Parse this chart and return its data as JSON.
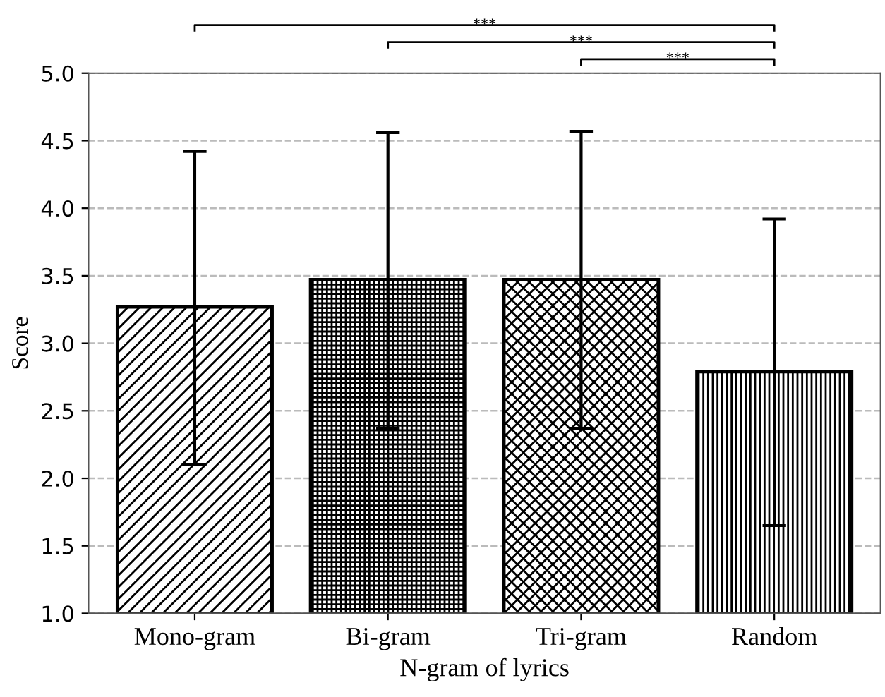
{
  "chart_data": {
    "type": "bar",
    "xlabel": "N-gram of lyrics",
    "ylabel": "Score",
    "categories": [
      "Mono-gram",
      "Bi-gram",
      "Tri-gram",
      "Random"
    ],
    "values": [
      3.27,
      3.47,
      3.47,
      2.79
    ],
    "errors": [
      [
        2.1,
        4.42
      ],
      [
        2.37,
        4.56
      ],
      [
        2.37,
        4.57
      ],
      [
        1.65,
        3.92
      ]
    ],
    "color": "#000000",
    "ylim": [
      1.0,
      5.0
    ],
    "yticks": [
      {
        "value": 1.0,
        "label": "1.0"
      },
      {
        "value": 1.5,
        "label": "1.5"
      },
      {
        "value": 2.0,
        "label": "2.0"
      },
      {
        "value": 2.5,
        "label": "2.5"
      },
      {
        "value": 3.0,
        "label": "3.0"
      },
      {
        "value": 3.5,
        "label": "3.5"
      },
      {
        "value": 4.0,
        "label": "4.0"
      },
      {
        "value": 4.5,
        "label": "4.5"
      },
      {
        "value": 5.0,
        "label": "5.0"
      }
    ],
    "grid": "y",
    "annotations": [
      "***",
      "***",
      "***"
    ]
  }
}
